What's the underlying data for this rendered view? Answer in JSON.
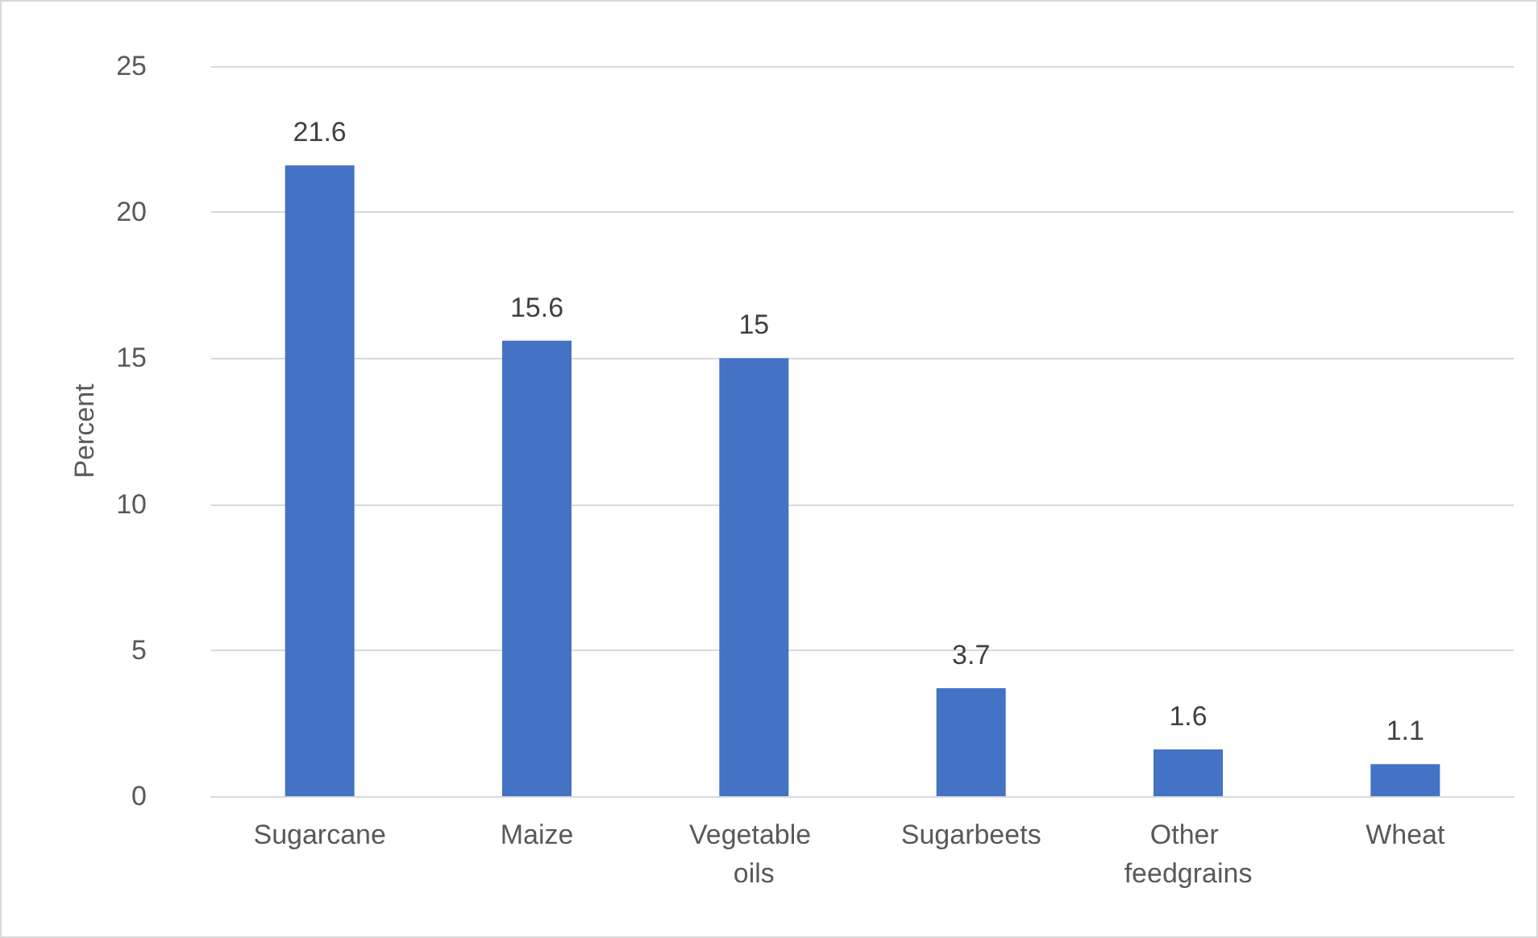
{
  "chart_data": {
    "type": "bar",
    "ylabel": "Percent",
    "categories": [
      "Sugarcane",
      "Maize",
      "Vegetable oils",
      "Sugarbeets",
      "Other feedgrains",
      "Wheat"
    ],
    "values": [
      21.6,
      15.6,
      15,
      3.7,
      1.6,
      1.1
    ],
    "color": "#4472c4",
    "ylim": [
      0,
      25
    ],
    "yticks": [
      0,
      5,
      10,
      15,
      20,
      25
    ],
    "grid": "y",
    "data_labels": true
  }
}
